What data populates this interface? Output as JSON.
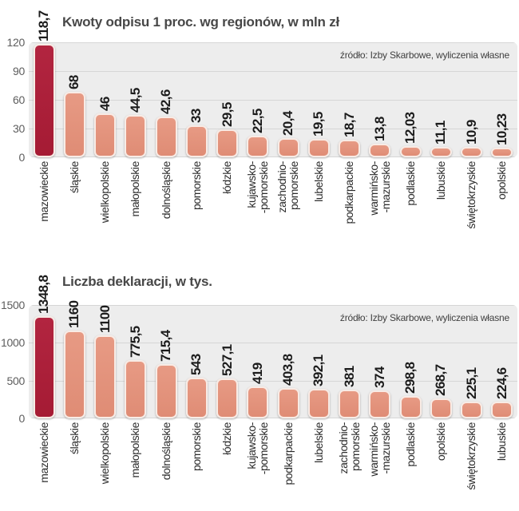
{
  "colors": {
    "highlight_bar": "#ab1e38",
    "bar": "#e4927c",
    "plot_background": "#ededed",
    "gridline": "#d6d6d6"
  },
  "chart_data": [
    {
      "type": "bar",
      "title": "Kwoty odpisu 1 proc. wg regionów, w mln zł",
      "source": "źródło: Izby Skarbowe, wyliczenia własne",
      "ylim": [
        0,
        120
      ],
      "yticks": [
        0,
        30,
        60,
        90,
        120
      ],
      "grid": true,
      "legend": "none",
      "highlight_index": 0,
      "categories": [
        "mazowieckie",
        "śląskie",
        "wielkopolskie",
        "małopolskie",
        "dolnośląskie",
        "pomorskie",
        "łódzkie",
        "kujawsko-pomorskie",
        "zachodnio-pomorskie",
        "lubelskie",
        "podkarpackie",
        "warmińsko-mazurskie",
        "podlaskie",
        "lubuskie",
        "świętokrzyskie",
        "opolskie"
      ],
      "category_lines": [
        [
          "mazowieckie"
        ],
        [
          "śląskie"
        ],
        [
          "wielkopolskie"
        ],
        [
          "małopolskie"
        ],
        [
          "dolnośląskie"
        ],
        [
          "pomorskie"
        ],
        [
          "łódzkie"
        ],
        [
          "kujawsko-",
          "-pomorskie"
        ],
        [
          "zachodnio-",
          "pomorskie"
        ],
        [
          "lubelskie"
        ],
        [
          "podkarpackie"
        ],
        [
          "warmińsko-",
          "-mazurskie"
        ],
        [
          "podlaskie"
        ],
        [
          "lubuskie"
        ],
        [
          "świętokrzyskie"
        ],
        [
          "opolskie"
        ]
      ],
      "values": [
        118.7,
        68,
        46,
        44.5,
        42.6,
        33,
        29.5,
        22.5,
        20.4,
        19.5,
        18.7,
        13.8,
        12.03,
        11.1,
        10.9,
        10.23
      ],
      "value_labels": [
        "118,7",
        "68",
        "46",
        "44,5",
        "42,6",
        "33",
        "29,5",
        "22,5",
        "20,4",
        "19,5",
        "18,7",
        "13,8",
        "12,03",
        "11,1",
        "10,9",
        "10,23"
      ]
    },
    {
      "type": "bar",
      "title": "Liczba deklaracji, w tys.",
      "source": "źródło: Izby Skarbowe, wyliczenia własne",
      "ylim": [
        0,
        1500
      ],
      "yticks": [
        0,
        500,
        1000,
        1500
      ],
      "grid": true,
      "legend": "none",
      "highlight_index": 0,
      "categories": [
        "mazowieckie",
        "śląskie",
        "wielkopolskie",
        "małopolskie",
        "dolnośląskie",
        "pomorskie",
        "łódzkie",
        "kujawsko-pomorskie",
        "podkarpackie",
        "lubelskie",
        "zachodnio-pomorskie",
        "warmińsko-mazurskie",
        "podlaskie",
        "opolskie",
        "świętokrzyskie",
        "lubuskie"
      ],
      "category_lines": [
        [
          "mazowieckie"
        ],
        [
          "śląskie"
        ],
        [
          "wielkopolskie"
        ],
        [
          "małopolskie"
        ],
        [
          "dolnośląskie"
        ],
        [
          "pomorskie"
        ],
        [
          "łódzkie"
        ],
        [
          "kujawsko-",
          "-pomorskie"
        ],
        [
          "podkarpackie"
        ],
        [
          "lubelskie"
        ],
        [
          "zachodnio-",
          "pomorskie"
        ],
        [
          "warmińsko-",
          "-mazurskie"
        ],
        [
          "podlaskie"
        ],
        [
          "opolskie"
        ],
        [
          "świętokrzyskie"
        ],
        [
          "lubuskie"
        ]
      ],
      "values": [
        1348.8,
        1160,
        1100,
        775.5,
        715.4,
        543,
        527.1,
        419,
        403.8,
        392.1,
        381,
        374,
        298.8,
        268.7,
        225.1,
        224.6
      ],
      "value_labels": [
        "1348,8",
        "1160",
        "1100",
        "775,5",
        "715,4",
        "543",
        "527,1",
        "419",
        "403,8",
        "392,1",
        "381",
        "374",
        "298,8",
        "268,7",
        "225,1",
        "224,6"
      ]
    }
  ]
}
